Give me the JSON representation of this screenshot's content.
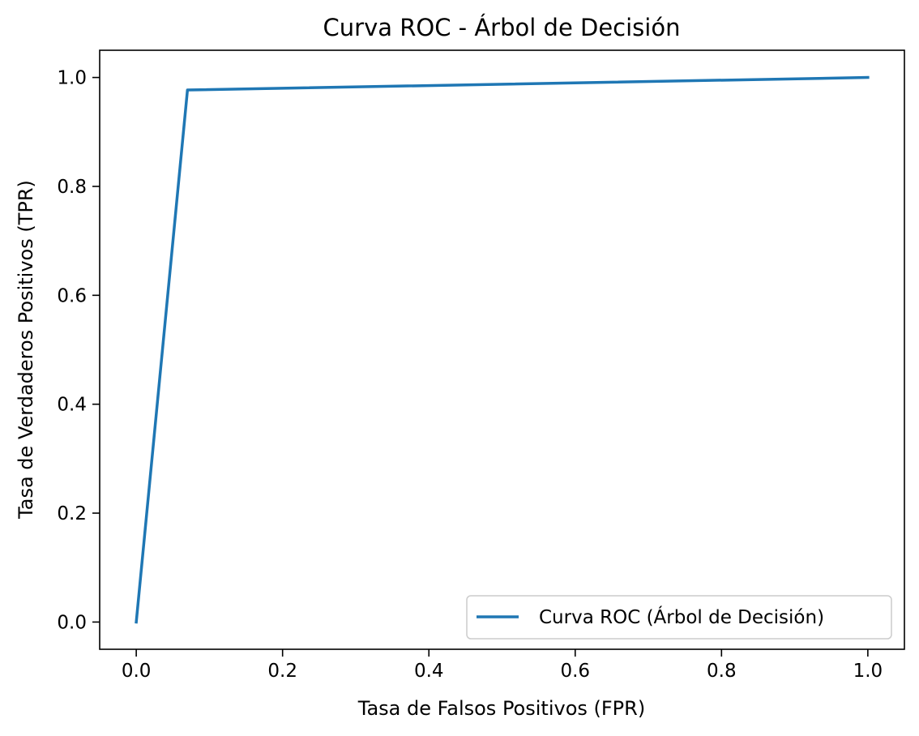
{
  "chart_data": {
    "type": "line",
    "title": "Curva ROC - Árbol de Decisión",
    "xlabel": "Tasa de Falsos Positivos (FPR)",
    "ylabel": "Tasa de Verdaderos Positivos (TPR)",
    "xlim": [
      -0.05,
      1.05
    ],
    "ylim": [
      -0.05,
      1.05
    ],
    "xticks": [
      "0.0",
      "0.2",
      "0.4",
      "0.6",
      "0.8",
      "1.0"
    ],
    "yticks": [
      "0.0",
      "0.2",
      "0.4",
      "0.6",
      "0.8",
      "1.0"
    ],
    "grid": false,
    "legend_position": "lower-right",
    "series": [
      {
        "name": "Curva ROC (Árbol de Decisión)",
        "color": "#1f77b4",
        "x": [
          0.0,
          0.07,
          1.0
        ],
        "y": [
          0.0,
          0.977,
          1.0
        ]
      }
    ]
  }
}
